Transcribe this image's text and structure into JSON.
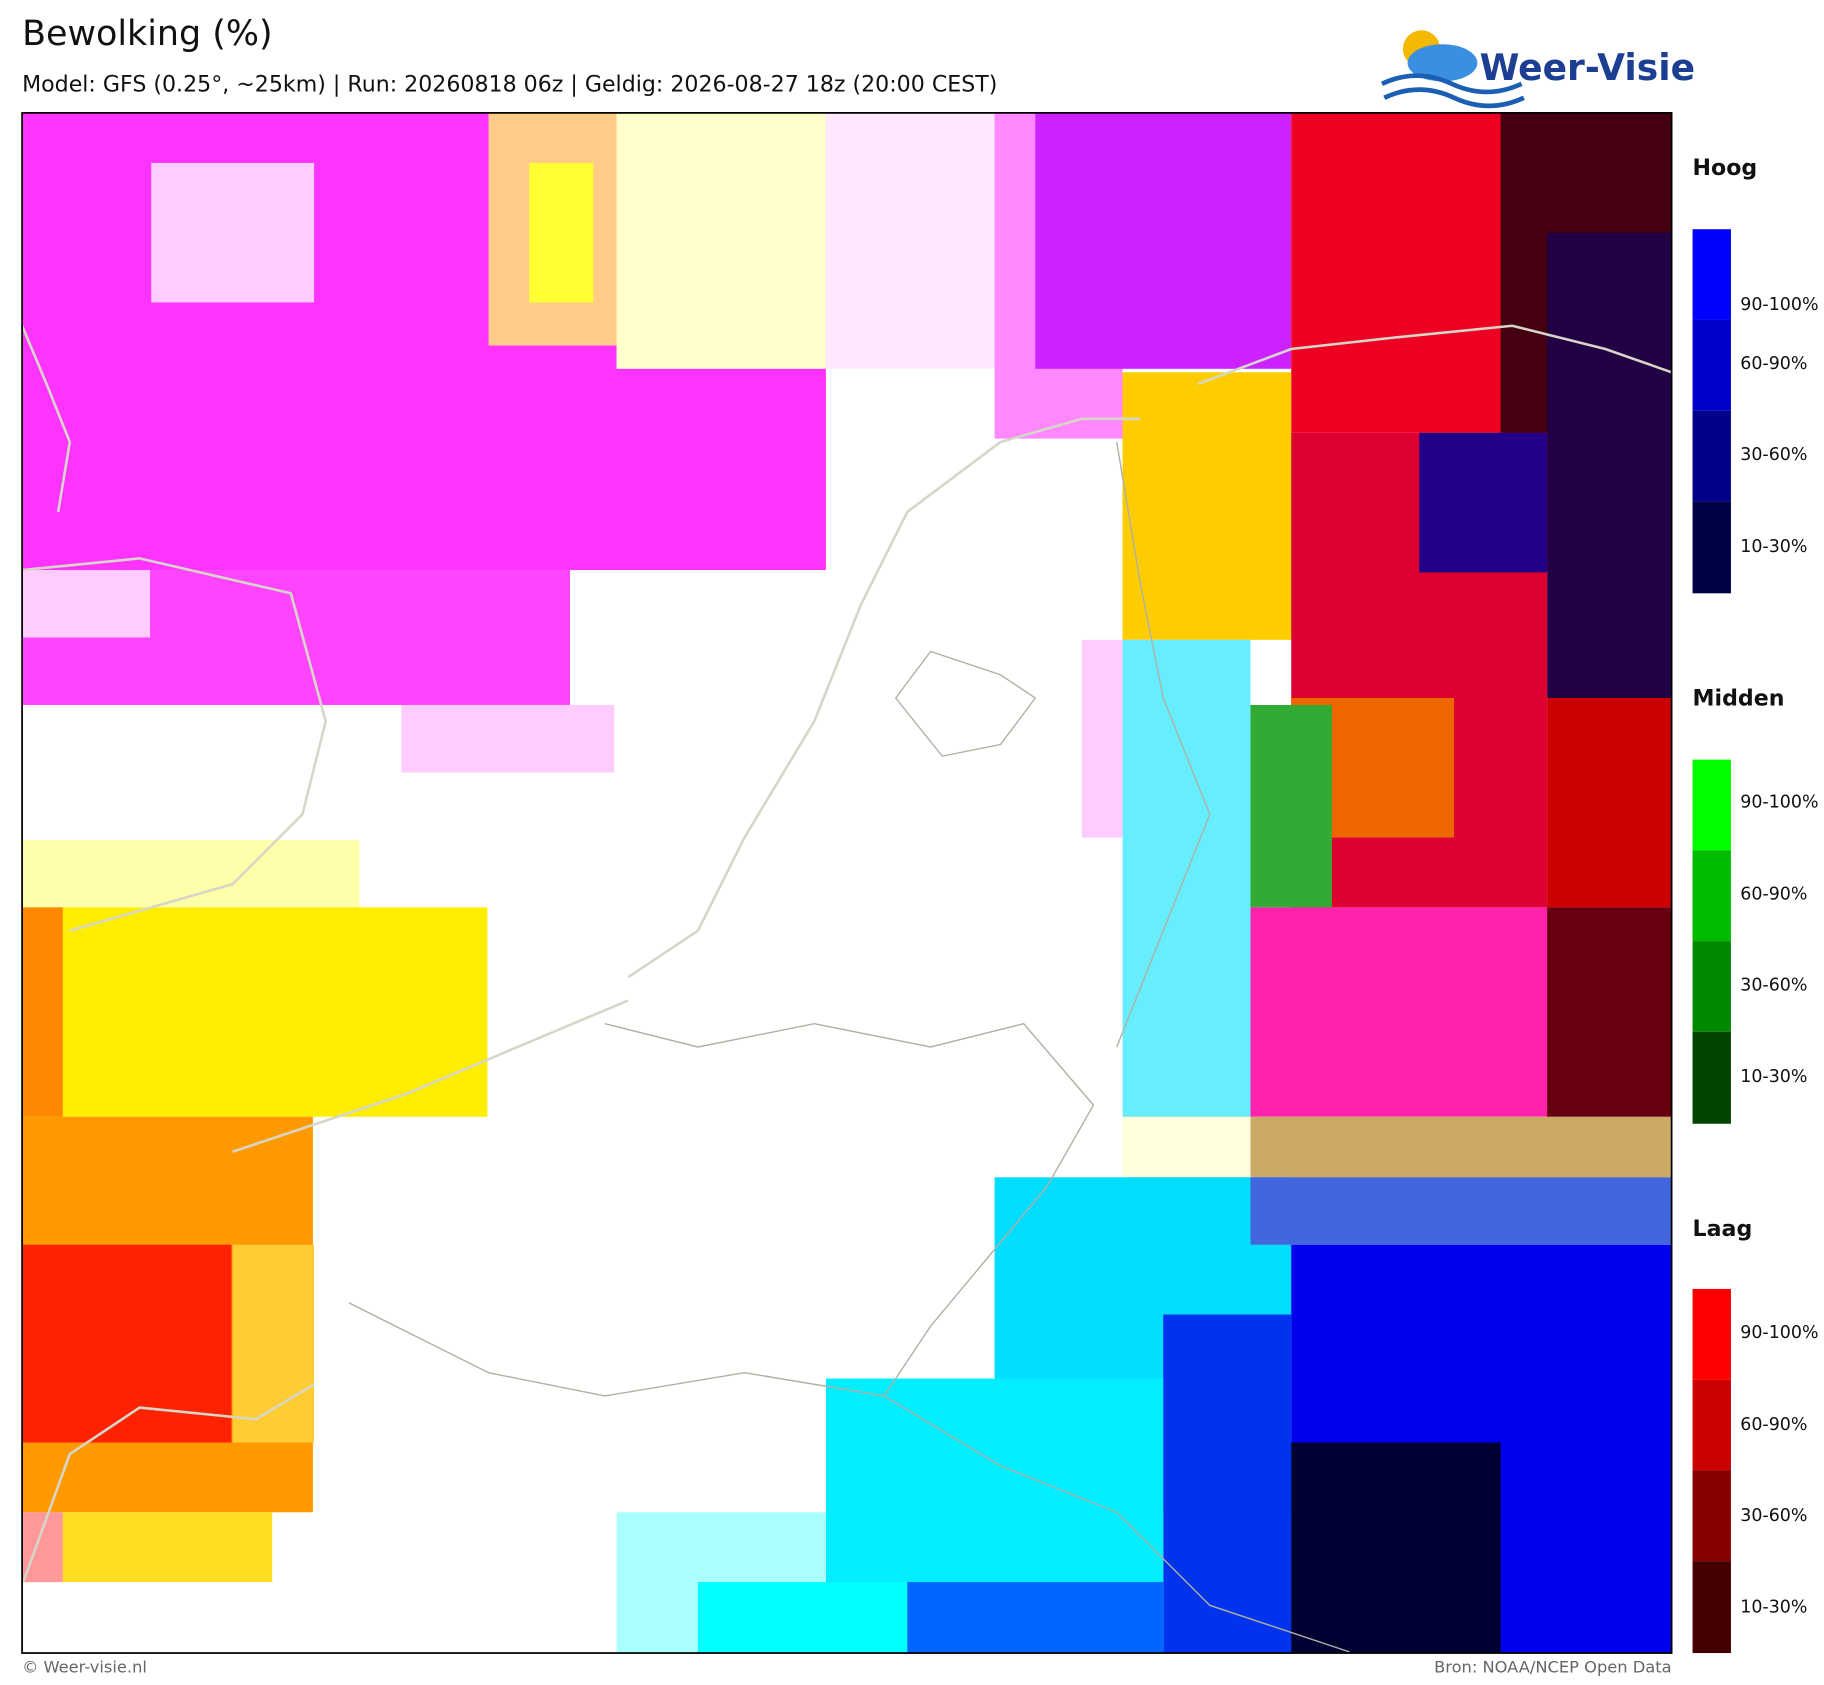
{
  "header": {
    "title": "Bewolking (%)",
    "subtitle": "Model: GFS (0.25°, ~25km)  |  Run: 20260818 06z  |  Geldig: 2026-08-27 18z (20:00 CEST)",
    "logo": "Weer-Visie"
  },
  "legend": {
    "sections": [
      {
        "title": "Hoog",
        "labels": [
          "90-100%",
          "60-90%",
          "30-60%",
          "10-30%"
        ]
      },
      {
        "title": "Midden",
        "labels": [
          "90-100%",
          "60-90%",
          "30-60%",
          "10-30%"
        ]
      },
      {
        "title": "Laag",
        "labels": [
          "90-100%",
          "60-90%",
          "30-60%",
          "10-30%"
        ]
      }
    ]
  },
  "footer": {
    "left": "© Weer-visie.nl",
    "right": "Bron: NOAA/NCEP Open Data"
  }
}
